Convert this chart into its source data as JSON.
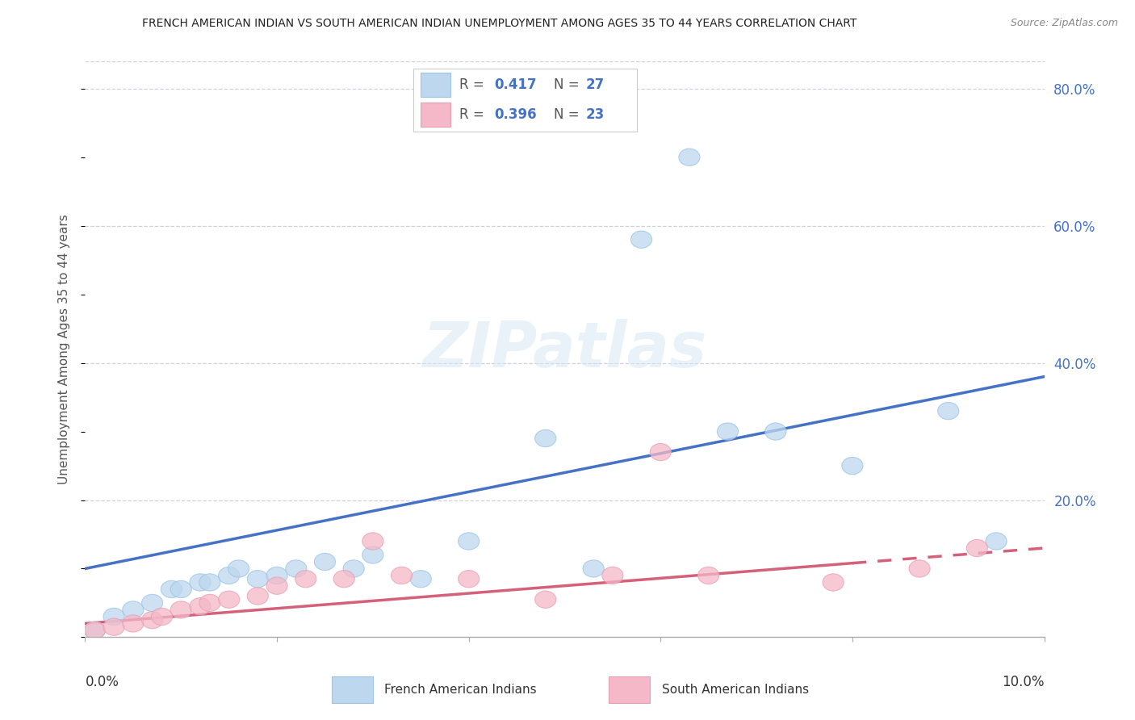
{
  "title": "FRENCH AMERICAN INDIAN VS SOUTH AMERICAN INDIAN UNEMPLOYMENT AMONG AGES 35 TO 44 YEARS CORRELATION CHART",
  "source": "Source: ZipAtlas.com",
  "ylabel": "Unemployment Among Ages 35 to 44 years",
  "watermark": "ZIPatlas",
  "blue_r": "0.417",
  "blue_n": "27",
  "pink_r": "0.396",
  "pink_n": "23",
  "legend_blue_label": "French American Indians",
  "legend_pink_label": "South American Indians",
  "blue_x": [
    0.001,
    0.003,
    0.005,
    0.007,
    0.009,
    0.01,
    0.012,
    0.013,
    0.015,
    0.016,
    0.018,
    0.02,
    0.022,
    0.025,
    0.028,
    0.03,
    0.035,
    0.04,
    0.048,
    0.053,
    0.058,
    0.063,
    0.067,
    0.072,
    0.08,
    0.09,
    0.095
  ],
  "blue_y": [
    0.01,
    0.03,
    0.04,
    0.05,
    0.07,
    0.07,
    0.08,
    0.08,
    0.09,
    0.1,
    0.085,
    0.09,
    0.1,
    0.11,
    0.1,
    0.12,
    0.085,
    0.14,
    0.29,
    0.1,
    0.58,
    0.7,
    0.3,
    0.3,
    0.25,
    0.33,
    0.14
  ],
  "pink_x": [
    0.001,
    0.003,
    0.005,
    0.007,
    0.008,
    0.01,
    0.012,
    0.013,
    0.015,
    0.018,
    0.02,
    0.023,
    0.027,
    0.03,
    0.033,
    0.04,
    0.048,
    0.055,
    0.06,
    0.065,
    0.078,
    0.087,
    0.093
  ],
  "pink_y": [
    0.01,
    0.015,
    0.02,
    0.025,
    0.03,
    0.04,
    0.045,
    0.05,
    0.055,
    0.06,
    0.075,
    0.085,
    0.085,
    0.14,
    0.09,
    0.085,
    0.055,
    0.09,
    0.27,
    0.09,
    0.08,
    0.1,
    0.13
  ],
  "blue_line_color": "#4472C4",
  "pink_line_color": "#D4607A",
  "blue_scatter_facecolor": "#BDD7EE",
  "blue_scatter_edgecolor": "#9DC3E6",
  "pink_scatter_facecolor": "#F4B8C8",
  "pink_scatter_edgecolor": "#E8A0B4",
  "grid_color": "#D0D0E0",
  "r_n_color": "#4472C4",
  "title_color": "#222222",
  "source_color": "#888888",
  "ylabel_color": "#555555",
  "right_tick_color": "#4472C4",
  "xlim": [
    0.0,
    0.1
  ],
  "ylim": [
    0.0,
    0.84
  ],
  "ytick_vals": [
    0.2,
    0.4,
    0.6,
    0.8
  ],
  "ytick_labels": [
    "20.0%",
    "40.0%",
    "60.0%",
    "80.0%"
  ],
  "pink_dash_split": 0.08
}
